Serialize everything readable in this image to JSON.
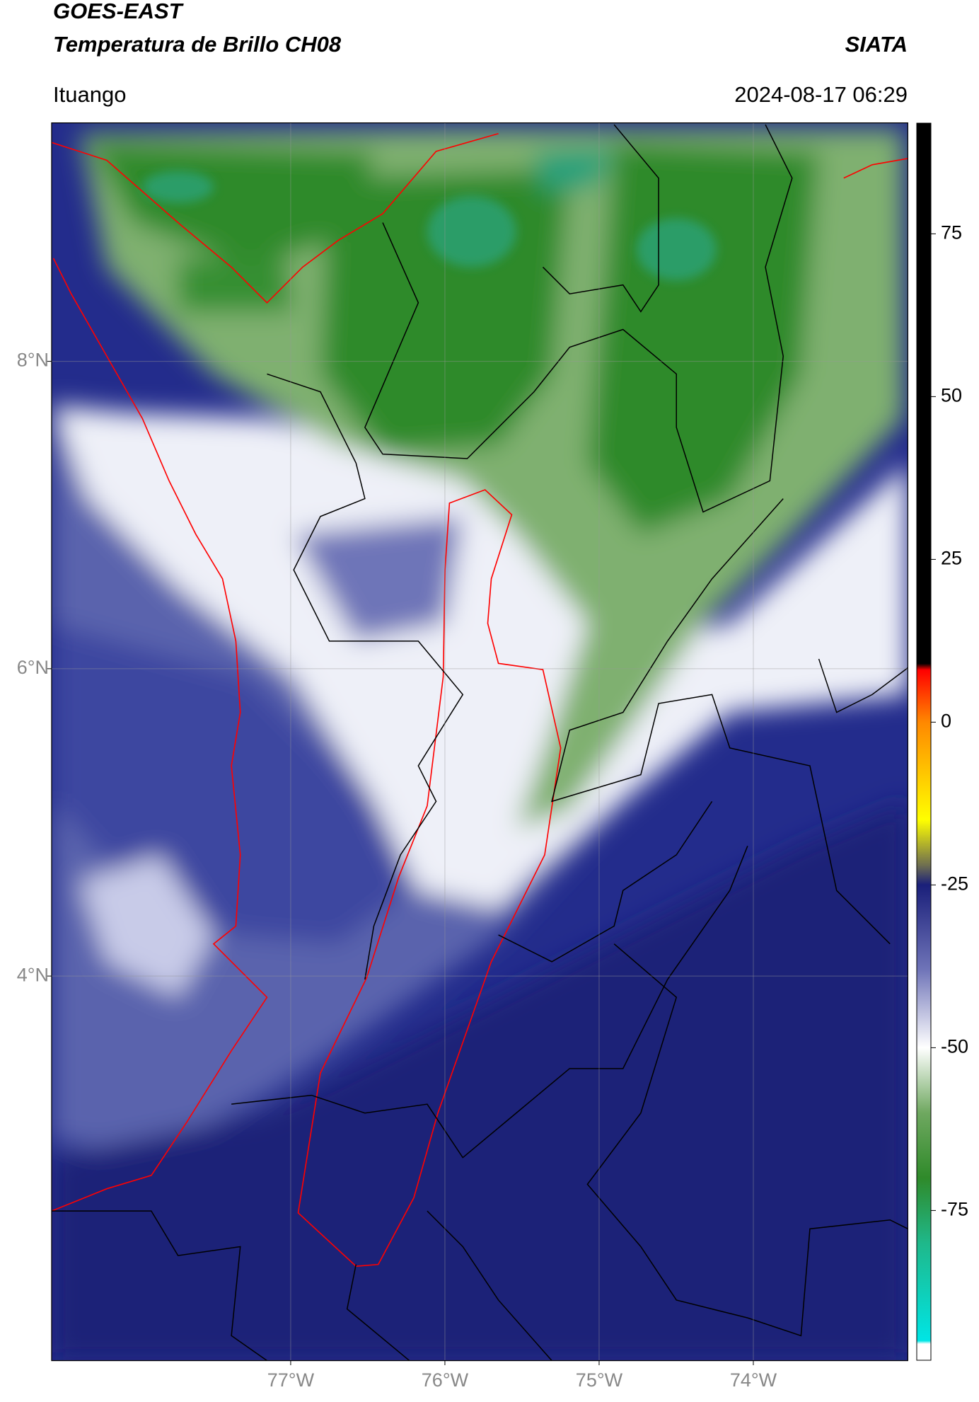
{
  "header": {
    "satellite": "GOES-EAST",
    "product": "Temperatura de Brillo CH08",
    "source": "SIATA",
    "location": "Ituango",
    "datetime": "2024-08-17 06:29"
  },
  "map": {
    "xlim": [
      -78.55,
      -73.0
    ],
    "ylim": [
      1.5,
      9.55
    ],
    "xticks": [
      {
        "value": -77,
        "label": "77°W"
      },
      {
        "value": -76,
        "label": "76°W"
      },
      {
        "value": -75,
        "label": "75°W"
      },
      {
        "value": -74,
        "label": "74°W"
      }
    ],
    "yticks": [
      {
        "value": 4,
        "label": "4°N"
      },
      {
        "value": 6,
        "label": "6°N"
      },
      {
        "value": 8,
        "label": "8°N"
      }
    ],
    "grid": true
  },
  "colorbar": {
    "lim": [
      -98,
      92
    ],
    "ticks": [
      75,
      50,
      25,
      0,
      -25,
      -50,
      -75
    ],
    "stops": [
      {
        "value": 92,
        "color": "#000000"
      },
      {
        "value": 9,
        "color": "#000000"
      },
      {
        "value": 8,
        "color": "#ff0000"
      },
      {
        "value": 0,
        "color": "#ff8800"
      },
      {
        "value": -15,
        "color": "#ffff00"
      },
      {
        "value": -22,
        "color": "#6e6e50"
      },
      {
        "value": -25,
        "color": "#1a1f7a"
      },
      {
        "value": -38,
        "color": "#6f74b8"
      },
      {
        "value": -50,
        "color": "#ffffff"
      },
      {
        "value": -60,
        "color": "#6fa860"
      },
      {
        "value": -70,
        "color": "#2f8a2a"
      },
      {
        "value": -80,
        "color": "#1fb88a"
      },
      {
        "value": -95,
        "color": "#00e5e5"
      },
      {
        "value": -95.5,
        "color": "#ffffff"
      },
      {
        "value": -98,
        "color": "#ffffff"
      }
    ]
  }
}
